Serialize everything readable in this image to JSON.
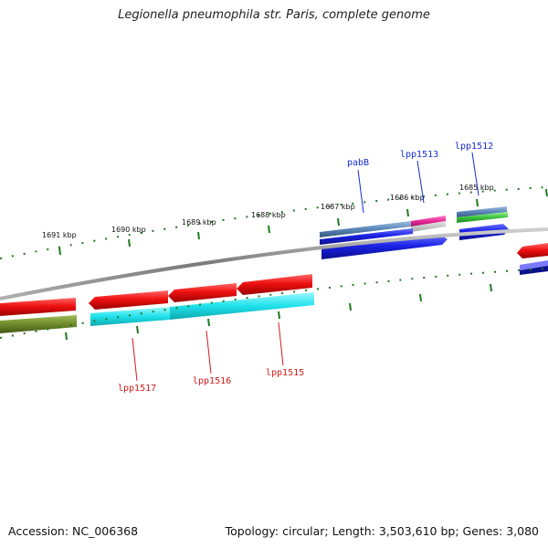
{
  "title": "Legionella pneumophila str. Paris, complete genome",
  "accession_text": "Accession: NC_006368",
  "summary_text": "Topology: circular; Length: 3,503,610 bp; Genes: 3,080",
  "ruler_labels": [
    "1691 kbp",
    "1690 kbp",
    "1689 kbp",
    "1688 kbp",
    "1687 kbp",
    "1686 kbp",
    "1685 kbp"
  ],
  "forward_gene_labels": [
    "pabB",
    "lpp1513",
    "lpp1512"
  ],
  "reverse_gene_labels": [
    "lpp1517",
    "lpp1516",
    "lpp1515"
  ],
  "colors": {
    "backbone": "#8a8a8a",
    "tick": "#1f7a1f",
    "cds": "#e8141e",
    "gene_fwd": "#1f28e0",
    "cog_cyan": "#22e3ec",
    "cog_olive": "#6e8a2a",
    "cog_steelblue": "#5a86b8",
    "cog_pink": "#e82a9a",
    "cog_green": "#3cc43c"
  }
}
